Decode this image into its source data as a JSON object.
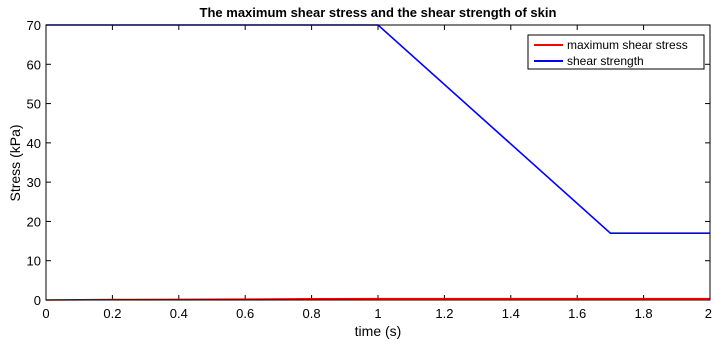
{
  "chart_data": {
    "type": "line",
    "title": "The maximum shear stress and the shear strength of skin",
    "xlabel": "time (s)",
    "ylabel": "Stress (kPa)",
    "xlim": [
      0,
      2
    ],
    "ylim": [
      0,
      70
    ],
    "xticks": [
      0,
      0.2,
      0.4,
      0.6,
      0.8,
      1,
      1.2,
      1.4,
      1.6,
      1.8,
      2
    ],
    "xtick_labels": [
      "0",
      "0.2",
      "0.4",
      "0.6",
      "0.8",
      "1",
      "1.2",
      "1.4",
      "1.6",
      "1.8",
      "2"
    ],
    "yticks": [
      0,
      10,
      20,
      30,
      40,
      50,
      60,
      70
    ],
    "ytick_labels": [
      "0",
      "10",
      "20",
      "30",
      "40",
      "50",
      "60",
      "70"
    ],
    "grid": false,
    "legend_position": "top-right",
    "series": [
      {
        "name": "maximum shear stress",
        "color": "#ff0000",
        "x": [
          0,
          0.2,
          0.4,
          0.6,
          0.8,
          1.0,
          1.2,
          1.4,
          1.6,
          1.8,
          2.0
        ],
        "y": [
          0,
          0.1,
          0.15,
          0.2,
          0.3,
          0.35,
          0.35,
          0.35,
          0.35,
          0.35,
          0.35
        ]
      },
      {
        "name": "shear strength",
        "color": "#0000ff",
        "x": [
          0,
          1.0,
          1.7,
          2.0
        ],
        "y": [
          70,
          70,
          17,
          17
        ]
      }
    ]
  }
}
